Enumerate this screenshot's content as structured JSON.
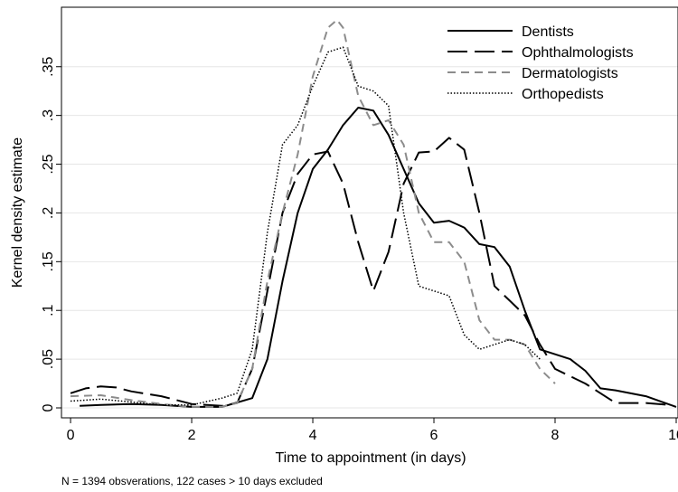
{
  "chart_data": {
    "type": "line",
    "x_label": "Time to appointment (in days)",
    "y_label": "Kernel density estimate",
    "note": "N = 1394 obsverations, 122 cases > 10 days excluded",
    "xlim": [
      -0.15,
      10.03
    ],
    "ylim": [
      -0.0102,
      0.411
    ],
    "xticks": [
      0,
      2,
      4,
      6,
      8,
      10
    ],
    "yticks": [
      0,
      {
        "value": 0.05,
        "label": ".05"
      },
      {
        "value": 0.1,
        "label": ".1"
      },
      {
        "value": 0.15,
        "label": ".15"
      },
      {
        "value": 0.2,
        "label": ".2"
      },
      {
        "value": 0.25,
        "label": ".25"
      },
      {
        "value": 0.3,
        "label": ".3"
      },
      {
        "value": 0.35,
        "label": ".35"
      }
    ],
    "grid": true,
    "legend": "top-right",
    "series": [
      {
        "name": "Dentists",
        "color": "#000000",
        "dash": "solid",
        "x": [
          0.15,
          0.5,
          1,
          1.5,
          2,
          2.5,
          3,
          3.25,
          3.5,
          3.75,
          4,
          4.25,
          4.5,
          4.75,
          5,
          5.25,
          5.5,
          5.75,
          6,
          6.25,
          6.5,
          6.75,
          7,
          7.25,
          7.5,
          7.75,
          8,
          8.25,
          8.5,
          8.75,
          9,
          9.5,
          10
        ],
        "values": [
          0.002,
          0.003,
          0.004,
          0.003,
          0.001,
          0.001,
          0.01,
          0.05,
          0.13,
          0.2,
          0.245,
          0.265,
          0.29,
          0.308,
          0.305,
          0.28,
          0.245,
          0.21,
          0.19,
          0.192,
          0.185,
          0.168,
          0.165,
          0.145,
          0.1,
          0.06,
          0.055,
          0.05,
          0.038,
          0.02,
          0.018,
          0.012,
          0.001
        ]
      },
      {
        "name": "Ophthalmologists",
        "color": "#000000",
        "dash": "long",
        "x": [
          0,
          0.25,
          0.5,
          0.75,
          1,
          1.5,
          2,
          2.5,
          2.75,
          3,
          3.25,
          3.5,
          3.75,
          4,
          4.25,
          4.5,
          4.75,
          5,
          5.25,
          5.5,
          5.75,
          6,
          6.25,
          6.5,
          6.75,
          7,
          7.25,
          7.5,
          7.75,
          8,
          8.5,
          9,
          9.5,
          9.9
        ],
        "values": [
          0.015,
          0.02,
          0.022,
          0.021,
          0.017,
          0.012,
          0.004,
          0.002,
          0.005,
          0.04,
          0.12,
          0.2,
          0.24,
          0.26,
          0.263,
          0.23,
          0.17,
          0.12,
          0.16,
          0.23,
          0.262,
          0.263,
          0.277,
          0.265,
          0.2,
          0.125,
          0.11,
          0.095,
          0.065,
          0.04,
          0.025,
          0.005,
          0.005,
          0.003
        ]
      },
      {
        "name": "Dermatologists",
        "color": "#8c8c8c",
        "dash": "short",
        "x": [
          0,
          0.5,
          1,
          1.5,
          2,
          2.5,
          2.75,
          3,
          3.25,
          3.5,
          3.75,
          4,
          4.25,
          4.4,
          4.5,
          4.75,
          5,
          5.25,
          5.5,
          5.75,
          6,
          6.25,
          6.5,
          6.75,
          7,
          7.25,
          7.5,
          7.75,
          8
        ],
        "values": [
          0.012,
          0.013,
          0.008,
          0.004,
          0.001,
          0.001,
          0.005,
          0.04,
          0.13,
          0.2,
          0.26,
          0.34,
          0.39,
          0.398,
          0.39,
          0.32,
          0.29,
          0.295,
          0.27,
          0.2,
          0.17,
          0.17,
          0.15,
          0.09,
          0.07,
          0.07,
          0.065,
          0.04,
          0.025
        ]
      },
      {
        "name": "Orthopedists",
        "color": "#000000",
        "dash": "dot",
        "x": [
          0,
          0.5,
          1,
          1.5,
          2,
          2.5,
          2.75,
          3,
          3.25,
          3.5,
          3.75,
          4,
          4.25,
          4.5,
          4.75,
          5,
          5.25,
          5.5,
          5.75,
          6,
          6.25,
          6.5,
          6.75,
          7,
          7.25,
          7.5,
          7.75
        ],
        "values": [
          0.007,
          0.009,
          0.006,
          0.003,
          0.003,
          0.01,
          0.015,
          0.06,
          0.18,
          0.27,
          0.29,
          0.33,
          0.365,
          0.37,
          0.33,
          0.325,
          0.31,
          0.2,
          0.125,
          0.12,
          0.115,
          0.075,
          0.06,
          0.065,
          0.07,
          0.065,
          0.05
        ]
      }
    ]
  }
}
